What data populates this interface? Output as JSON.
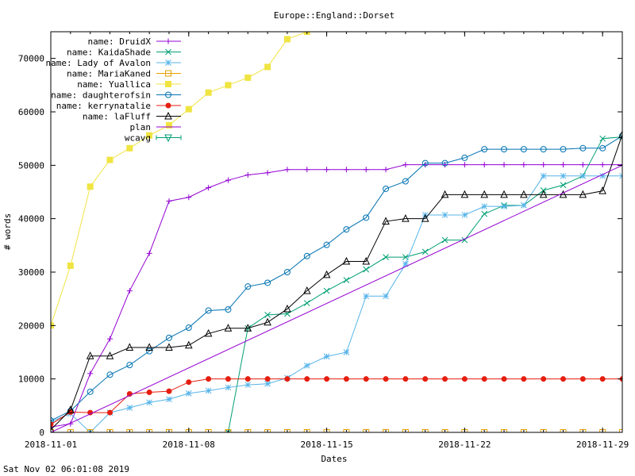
{
  "footer": {
    "timestamp": "Sat Nov 02 06:01:08 2019"
  },
  "chart_data": {
    "type": "line",
    "title": "Europe::England::Dorset",
    "xlabel": "Dates",
    "ylabel": "# words",
    "x_type": "date",
    "xlim": [
      "2018-11-01",
      "2018-11-30"
    ],
    "ylim": [
      0,
      75000
    ],
    "x_ticks": [
      "2018-11-01",
      "2018-11-08",
      "2018-11-15",
      "2018-11-22",
      "2018-11-29"
    ],
    "y_ticks": [
      0,
      10000,
      20000,
      30000,
      40000,
      50000,
      60000,
      70000
    ],
    "grid": false,
    "legend_position": "top-left",
    "series": [
      {
        "name": "name: DruidX",
        "color": "#9400d3",
        "marker": "plus",
        "x": [
          "2018-11-01",
          "2018-11-02",
          "2018-11-03",
          "2018-11-04",
          "2018-11-05",
          "2018-11-06",
          "2018-11-07",
          "2018-11-08",
          "2018-11-09",
          "2018-11-10",
          "2018-11-11",
          "2018-11-12",
          "2018-11-13",
          "2018-11-14",
          "2018-11-15",
          "2018-11-16",
          "2018-11-17",
          "2018-11-18",
          "2018-11-19",
          "2018-11-20",
          "2018-11-21",
          "2018-11-22",
          "2018-11-23",
          "2018-11-24",
          "2018-11-25",
          "2018-11-26",
          "2018-11-27",
          "2018-11-28",
          "2018-11-29",
          "2018-11-30"
        ],
        "y": [
          1000,
          1600,
          11000,
          17500,
          26500,
          33500,
          43300,
          44000,
          45800,
          47200,
          48200,
          48600,
          49200,
          49200,
          49200,
          49200,
          49200,
          49200,
          50100,
          50100,
          50100,
          50100,
          50100,
          50100,
          50100,
          50100,
          50100,
          50100,
          50100,
          50100
        ]
      },
      {
        "name": "name: KaidaShade",
        "color": "#009e73",
        "marker": "x",
        "x": [
          "2018-11-10",
          "2018-11-11",
          "2018-11-12",
          "2018-11-13",
          "2018-11-14",
          "2018-11-15",
          "2018-11-16",
          "2018-11-17",
          "2018-11-18",
          "2018-11-19",
          "2018-11-20",
          "2018-11-21",
          "2018-11-22",
          "2018-11-23",
          "2018-11-24",
          "2018-11-25",
          "2018-11-26",
          "2018-11-27",
          "2018-11-28",
          "2018-11-29",
          "2018-11-30"
        ],
        "y": [
          0,
          19500,
          22000,
          22200,
          24200,
          26500,
          28500,
          30500,
          32800,
          32800,
          33800,
          36000,
          36000,
          40900,
          42500,
          42500,
          45300,
          46300,
          48000,
          55000,
          55300
        ]
      },
      {
        "name": "name: Lady of Avalon",
        "color": "#56b4e9",
        "marker": "star",
        "x": [
          "2018-11-01",
          "2018-11-02",
          "2018-11-03",
          "2018-11-04",
          "2018-11-05",
          "2018-11-06",
          "2018-11-07",
          "2018-11-08",
          "2018-11-09",
          "2018-11-10",
          "2018-11-11",
          "2018-11-12",
          "2018-11-13",
          "2018-11-14",
          "2018-11-15",
          "2018-11-16",
          "2018-11-17",
          "2018-11-18",
          "2018-11-19",
          "2018-11-20",
          "2018-11-21",
          "2018-11-22",
          "2018-11-23",
          "2018-11-24",
          "2018-11-25",
          "2018-11-26",
          "2018-11-27",
          "2018-11-28",
          "2018-11-29",
          "2018-11-30"
        ],
        "y": [
          2000,
          3500,
          0,
          3700,
          4600,
          5600,
          6200,
          7300,
          7800,
          8400,
          8900,
          9100,
          10200,
          12500,
          14200,
          15000,
          25500,
          25500,
          31500,
          40700,
          40700,
          40700,
          42300,
          42300,
          42500,
          48000,
          48000,
          48000,
          48000,
          48000
        ]
      },
      {
        "name": "name: MariaKaned",
        "color": "#e69f00",
        "marker": "square-open",
        "x": [
          "2018-11-01",
          "2018-11-02",
          "2018-11-03",
          "2018-11-04",
          "2018-11-05",
          "2018-11-06",
          "2018-11-07",
          "2018-11-08",
          "2018-11-09",
          "2018-11-10",
          "2018-11-11",
          "2018-11-12",
          "2018-11-13",
          "2018-11-14",
          "2018-11-15",
          "2018-11-16",
          "2018-11-17",
          "2018-11-18",
          "2018-11-19",
          "2018-11-20",
          "2018-11-21",
          "2018-11-22",
          "2018-11-23",
          "2018-11-24",
          "2018-11-25",
          "2018-11-26",
          "2018-11-27",
          "2018-11-28",
          "2018-11-29",
          "2018-11-30"
        ],
        "y": [
          0,
          0,
          0,
          0,
          0,
          0,
          0,
          0,
          0,
          0,
          0,
          0,
          0,
          0,
          0,
          0,
          0,
          0,
          0,
          0,
          0,
          0,
          0,
          0,
          0,
          0,
          0,
          0,
          0,
          0
        ]
      },
      {
        "name": "name: Yuallica",
        "color": "#f0e442",
        "marker": "square-filled",
        "x": [
          "2018-11-01",
          "2018-11-02",
          "2018-11-03",
          "2018-11-04",
          "2018-11-05",
          "2018-11-06",
          "2018-11-07",
          "2018-11-08",
          "2018-11-09",
          "2018-11-10",
          "2018-11-11",
          "2018-11-12",
          "2018-11-13",
          "2018-11-14"
        ],
        "y": [
          20000,
          31200,
          46000,
          51000,
          53200,
          55600,
          57500,
          60500,
          63600,
          65000,
          66400,
          68400,
          73600,
          75000
        ]
      },
      {
        "name": "name: daughterofsin",
        "color": "#0072b2",
        "marker": "circle-open",
        "x": [
          "2018-11-01",
          "2018-11-02",
          "2018-11-03",
          "2018-11-04",
          "2018-11-05",
          "2018-11-06",
          "2018-11-07",
          "2018-11-08",
          "2018-11-09",
          "2018-11-10",
          "2018-11-11",
          "2018-11-12",
          "2018-11-13",
          "2018-11-14",
          "2018-11-15",
          "2018-11-16",
          "2018-11-17",
          "2018-11-18",
          "2018-11-19",
          "2018-11-20",
          "2018-11-21",
          "2018-11-22",
          "2018-11-23",
          "2018-11-24",
          "2018-11-25",
          "2018-11-26",
          "2018-11-27",
          "2018-11-28",
          "2018-11-29",
          "2018-11-30"
        ],
        "y": [
          2200,
          4000,
          7600,
          10800,
          12600,
          15200,
          17700,
          19600,
          22800,
          23000,
          27300,
          28000,
          30000,
          33000,
          35100,
          38000,
          40200,
          45600,
          47000,
          50400,
          50400,
          51400,
          53000,
          53000,
          53000,
          53000,
          53000,
          53200,
          53200,
          55500
        ]
      },
      {
        "name": "name: kerrynatalie",
        "color": "#e51e10",
        "marker": "circle-filled",
        "x": [
          "2018-11-01",
          "2018-11-02",
          "2018-11-03",
          "2018-11-04",
          "2018-11-05",
          "2018-11-06",
          "2018-11-07",
          "2018-11-08",
          "2018-11-09",
          "2018-11-10",
          "2018-11-11",
          "2018-11-12",
          "2018-11-13",
          "2018-11-14",
          "2018-11-15",
          "2018-11-16",
          "2018-11-17",
          "2018-11-18",
          "2018-11-19",
          "2018-11-20",
          "2018-11-21",
          "2018-11-22",
          "2018-11-23",
          "2018-11-24",
          "2018-11-25",
          "2018-11-26",
          "2018-11-27",
          "2018-11-28",
          "2018-11-29",
          "2018-11-30"
        ],
        "y": [
          1500,
          3800,
          3700,
          3700,
          7200,
          7500,
          7700,
          9400,
          10000,
          10000,
          10000,
          10000,
          10000,
          10000,
          10000,
          10000,
          10000,
          10000,
          10000,
          10000,
          10000,
          10000,
          10000,
          10000,
          10000,
          10000,
          10000,
          10000,
          10000,
          10000
        ]
      },
      {
        "name": "name: laFluff",
        "color": "#000000",
        "marker": "triangle-open",
        "x": [
          "2018-11-01",
          "2018-11-02",
          "2018-11-03",
          "2018-11-04",
          "2018-11-05",
          "2018-11-06",
          "2018-11-07",
          "2018-11-08",
          "2018-11-09",
          "2018-11-10",
          "2018-11-11",
          "2018-11-12",
          "2018-11-13",
          "2018-11-14",
          "2018-11-15",
          "2018-11-16",
          "2018-11-17",
          "2018-11-18",
          "2018-11-19",
          "2018-11-20",
          "2018-11-21",
          "2018-11-22",
          "2018-11-23",
          "2018-11-24",
          "2018-11-25",
          "2018-11-26",
          "2018-11-27",
          "2018-11-28",
          "2018-11-29",
          "2018-11-30"
        ],
        "y": [
          500,
          4200,
          14300,
          14300,
          15900,
          15900,
          15900,
          16300,
          18500,
          19500,
          19500,
          20600,
          23100,
          26500,
          29500,
          32000,
          32000,
          39500,
          40000,
          40000,
          44500,
          44500,
          44500,
          44500,
          44500,
          44500,
          44500,
          44500,
          45200,
          55700
        ]
      },
      {
        "name": "plan",
        "color": "#9400d3",
        "marker": "none",
        "x": [
          "2018-11-01",
          "2018-11-30"
        ],
        "y": [
          0,
          50000
        ]
      },
      {
        "name": "wcavg",
        "color": "#009e73",
        "marker": "triangle-down-open",
        "x": [],
        "y": []
      }
    ]
  }
}
